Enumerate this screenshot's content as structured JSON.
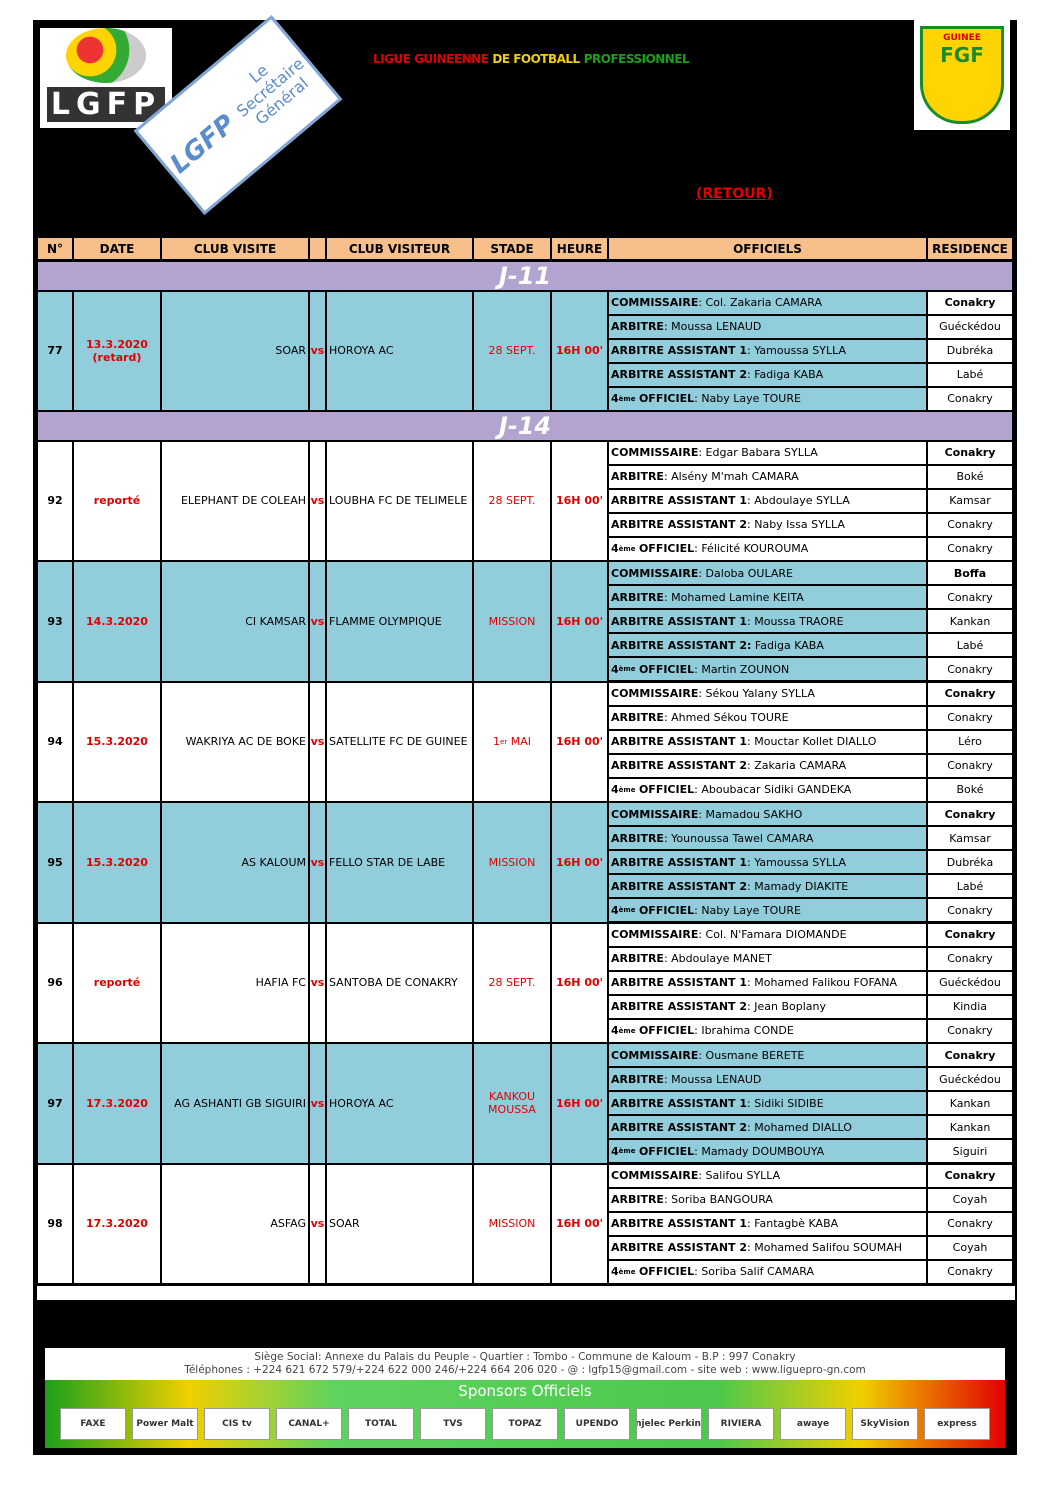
{
  "header": {
    "logo_left": "LGFP",
    "stamp": {
      "logo": "LGFP",
      "lines": [
        "Le",
        "Secrétaire",
        "Général"
      ]
    },
    "title_parts": [
      "LIGUE GUINEENNE",
      "DE FOOTBALL",
      "PROFESSIONNEL"
    ],
    "subtitle": "(RETOUR)",
    "logo_right": {
      "top": "GUINEE",
      "main": "FGF"
    }
  },
  "table": {
    "columns": [
      "N°",
      "DATE",
      "CLUB VISITE",
      "CLUB VISITEUR",
      "STADE",
      "HEURE",
      "OFFICIELS",
      "RESIDENCE"
    ],
    "sections": [
      {
        "title": "J-11",
        "matches": [
          {
            "no": "77",
            "date": "13.3.2020",
            "date_note": "(retard)",
            "home": "SOAR",
            "vs": "vs",
            "away": "HOROYA AC",
            "stade": "28 SEPT.",
            "heure": "16H 00'",
            "officials": [
              {
                "role": "COMMISSAIRE",
                "name": ": Col. Zakaria CAMARA",
                "residence": "Conakry"
              },
              {
                "role": "ARBITRE",
                "name": ": Moussa LENAUD",
                "residence": "Guéckédou"
              },
              {
                "role": "ARBITRE ASSISTANT 1",
                "name": ": Yamoussa SYLLA",
                "residence": "Dubréka"
              },
              {
                "role": "ARBITRE ASSISTANT 2",
                "name": ": Fadiga KABA",
                "residence": "Labé"
              },
              {
                "ordinal": "4",
                "ordinal_sup": "ème",
                "role": "OFFICIEL",
                "name": ": Naby Laye TOURE",
                "residence": "Conakry"
              }
            ]
          }
        ]
      },
      {
        "title": "J-14",
        "matches": [
          {
            "no": "92",
            "date": "reporté",
            "home": "ELEPHANT DE COLEAH",
            "vs": "vs",
            "away": "LOUBHA FC DE TELIMELE",
            "stade": "28 SEPT.",
            "heure": "16H 00'",
            "officials": [
              {
                "role": "COMMISSAIRE",
                "name": ": Edgar Babara SYLLA",
                "residence": "Conakry"
              },
              {
                "role": "ARBITRE",
                "name": ": Alsény M'mah CAMARA",
                "residence": "Boké"
              },
              {
                "role": "ARBITRE ASSISTANT 1",
                "name": ": Abdoulaye SYLLA",
                "residence": "Kamsar"
              },
              {
                "role": "ARBITRE ASSISTANT 2",
                "name": ": Naby Issa SYLLA",
                "residence": "Conakry"
              },
              {
                "ordinal": "4",
                "ordinal_sup": "ème",
                "role": "OFFICIEL",
                "name": ": Félicité KOUROUMA",
                "residence": "Conakry"
              }
            ]
          },
          {
            "no": "93",
            "date": "14.3.2020",
            "home": "CI KAMSAR",
            "vs": "vs",
            "away": "FLAMME OLYMPIQUE",
            "stade": "MISSION",
            "heure": "16H 00'",
            "officials": [
              {
                "role": "COMMISSAIRE",
                "name": ": Daloba OULARE",
                "residence": "Boffa"
              },
              {
                "role": "ARBITRE",
                "name": ": Mohamed Lamine KEITA",
                "residence": "Conakry"
              },
              {
                "role": "ARBITRE ASSISTANT 1",
                "name": ": Moussa TRAORE",
                "residence": "Kankan"
              },
              {
                "role": "ARBITRE ASSISTANT 2:",
                "name": " Fadiga KABA",
                "residence": "Labé"
              },
              {
                "ordinal": "4",
                "ordinal_sup": "ème",
                "role": "OFFICIEL",
                "name": ": Martin ZOUNON",
                "residence": "Conakry"
              }
            ]
          },
          {
            "no": "94",
            "date": "15.3.2020",
            "home": "WAKRIYA AC DE BOKE",
            "vs": "vs",
            "away": "SATELLITE FC DE GUINEE",
            "stade": "1",
            "stade_sup": "er",
            "stade_suffix": " MAI",
            "heure": "16H 00'",
            "officials": [
              {
                "role": "COMMISSAIRE",
                "name": ": Sékou Yalany SYLLA",
                "residence": "Conakry"
              },
              {
                "role": "ARBITRE",
                "name": ": Ahmed Sékou TOURE",
                "residence": "Conakry"
              },
              {
                "role": "ARBITRE ASSISTANT 1",
                "name": ": Mouctar Kollet DIALLO",
                "residence": "Léro"
              },
              {
                "role": "ARBITRE ASSISTANT 2",
                "name": ": Zakaria CAMARA",
                "residence": "Conakry"
              },
              {
                "ordinal": "4",
                "ordinal_sup": "ème",
                "role": "OFFICIEL",
                "name": ": Aboubacar Sidiki GANDEKA",
                "residence": "Boké"
              }
            ]
          },
          {
            "no": "95",
            "date": "15.3.2020",
            "home": "AS KALOUM",
            "vs": "vs",
            "away": "FELLO STAR DE LABE",
            "stade": "MISSION",
            "heure": "16H 00'",
            "officials": [
              {
                "role": "COMMISSAIRE",
                "name": ": Mamadou SAKHO",
                "residence": "Conakry"
              },
              {
                "role": "ARBITRE",
                "name": ": Younoussa Tawel CAMARA",
                "residence": "Kamsar"
              },
              {
                "role": "ARBITRE ASSISTANT 1",
                "name": ": Yamoussa SYLLA",
                "residence": "Dubréka"
              },
              {
                "role": "ARBITRE ASSISTANT 2",
                "name": ": Mamady DIAKITE",
                "residence": "Labé"
              },
              {
                "ordinal": "4",
                "ordinal_sup": "ème",
                "role": "OFFICIEL",
                "name": ": Naby Laye TOURE",
                "residence": "Conakry"
              }
            ]
          },
          {
            "no": "96",
            "date": "reporté",
            "home": "HAFIA FC",
            "vs": "vs",
            "away": "SANTOBA DE CONAKRY",
            "stade": "28 SEPT.",
            "heure": "16H 00'",
            "officials": [
              {
                "role": "COMMISSAIRE",
                "name": ": Col. N'Famara DIOMANDE",
                "residence": "Conakry"
              },
              {
                "role": "ARBITRE",
                "name": ": Abdoulaye MANET",
                "residence": "Conakry"
              },
              {
                "role": "ARBITRE ASSISTANT 1",
                "name": ": Mohamed Falikou FOFANA",
                "residence": "Guéckédou"
              },
              {
                "role": "ARBITRE ASSISTANT 2",
                "name": ": Jean Boplany",
                "residence": "Kindia"
              },
              {
                "ordinal": "4",
                "ordinal_sup": "ème",
                "role": "OFFICIEL",
                "name": ": Ibrahima CONDE",
                "residence": "Conakry"
              }
            ]
          },
          {
            "no": "97",
            "date": "17.3.2020",
            "home": "AG ASHANTI GB SIGUIRI",
            "vs": "vs",
            "away": "HOROYA AC",
            "stade": "KANKOU MOUSSA",
            "heure": "16H 00'",
            "officials": [
              {
                "role": "COMMISSAIRE",
                "name": ": Ousmane BERETE",
                "residence": "Conakry"
              },
              {
                "role": "ARBITRE",
                "name": ": Moussa LENAUD",
                "residence": "Guéckédou"
              },
              {
                "role": "ARBITRE ASSISTANT 1",
                "name": ": Sidiki SIDIBE",
                "residence": "Kankan"
              },
              {
                "role": "ARBITRE ASSISTANT 2",
                "name": ": Mohamed DIALLO",
                "residence": "Kankan"
              },
              {
                "ordinal": "4",
                "ordinal_sup": "ème",
                "role": "OFFICIEL",
                "name": ": Mamady DOUMBOUYA",
                "residence": "Siguiri"
              }
            ]
          },
          {
            "no": "98",
            "date": "17.3.2020",
            "home": "ASFAG",
            "vs": "vs",
            "away": "SOAR",
            "stade": "MISSION",
            "heure": "16H 00'",
            "officials": [
              {
                "role": "COMMISSAIRE",
                "name": ": Salifou SYLLA",
                "residence": "Conakry"
              },
              {
                "role": "ARBITRE",
                "name": ": Soriba BANGOURA",
                "residence": "Coyah"
              },
              {
                "role": "ARBITRE ASSISTANT 1",
                "name": ": Fantagbè KABA",
                "residence": "Conakry"
              },
              {
                "role": "ARBITRE ASSISTANT 2",
                "name": ": Mohamed Salifou SOUMAH",
                "residence": "Coyah"
              },
              {
                "ordinal": "4",
                "ordinal_sup": "ème",
                "role": "OFFICIEL",
                "name": ": Soriba Salif CAMARA",
                "residence": "Conakry"
              }
            ]
          }
        ]
      }
    ]
  },
  "footer": {
    "lines": [
      "Siège Social: Annexe du Palais du Peuple - Quartier : Tombo - Commune de Kaloum - B.P : 997 Conakry",
      "Téléphones : +224 621  672 579/+224 622 000 246/+224 664 206 020 - @ : lgfp15@gmail.com - site web : www.liguepro-gn.com"
    ],
    "sponsors_title": "Sponsors  Officiels",
    "sponsors": [
      "FAXE",
      "Power Malt",
      "CIS tv",
      "CANAL+",
      "TOTAL",
      "TVS",
      "TOPAZ",
      "UPENDO",
      "Injelec Perkins",
      "RIVIERA",
      "awaye",
      "SkyVision",
      "express"
    ]
  }
}
